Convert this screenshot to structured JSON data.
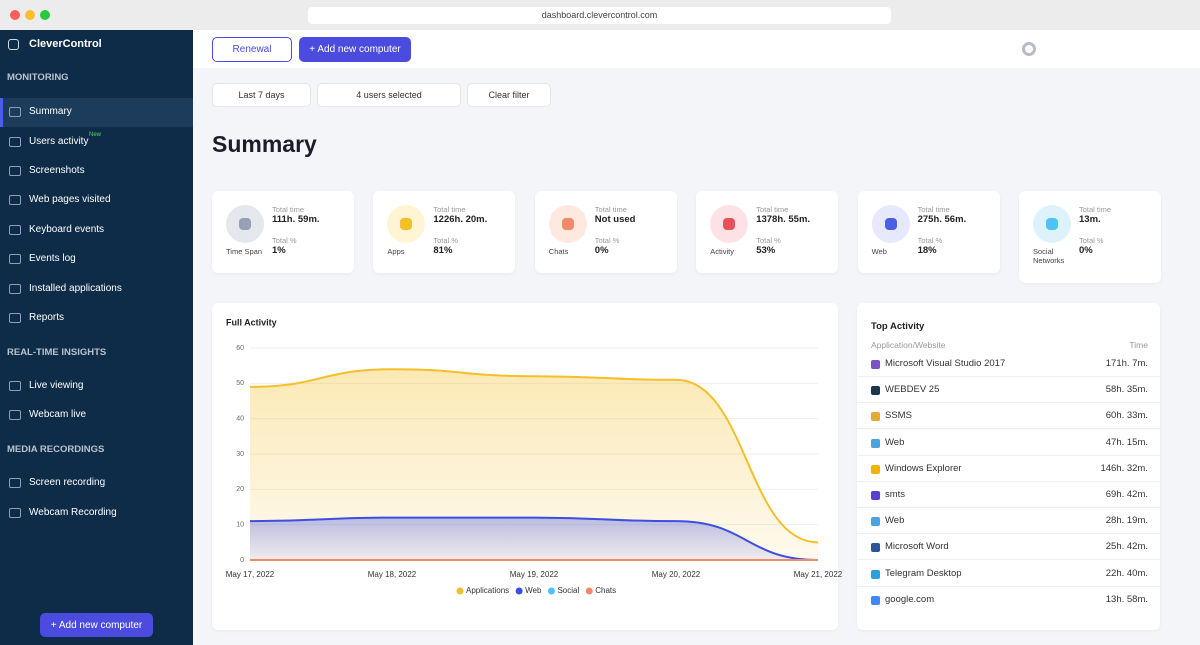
{
  "browser": {
    "url": "dashboard.clevercontrol.com"
  },
  "sidebar": {
    "brand": "CleverControl",
    "sections": [
      {
        "heading": "MONITORING",
        "items": [
          "Summary",
          "Users activity",
          "Screenshots",
          "Web pages visited",
          "Keyboard events",
          "Events log",
          "Installed applications",
          "Reports"
        ]
      },
      {
        "heading": "REAL-TIME INSIGHTS",
        "items": [
          "Live viewing",
          "Webcam live"
        ]
      },
      {
        "heading": "MEDIA RECORDINGS",
        "items": [
          "Screen recording",
          "Webcam Recording"
        ]
      }
    ],
    "badge": "New",
    "button": "+ Add new computer"
  },
  "toolbar": {
    "renewal": "Renewal",
    "add": "+ Add new computer"
  },
  "filters": {
    "period": "Last 7 days",
    "users": "4 users selected",
    "clear": "Clear filter"
  },
  "page_title": "Summary",
  "stats": [
    {
      "label": "Time Span",
      "time_label": "Total time",
      "time": "111h. 59m.",
      "pct_label": "Total %",
      "pct": "1%"
    },
    {
      "label": "Apps",
      "time_label": "Total time",
      "time": "1226h. 20m.",
      "pct_label": "Total %",
      "pct": "81%"
    },
    {
      "label": "Chats",
      "time_label": "Total time",
      "time": "Not used",
      "pct_label": "Total %",
      "pct": "0%"
    },
    {
      "label": "Activity",
      "time_label": "Total time",
      "time": "1378h. 55m.",
      "pct_label": "Total %",
      "pct": "53%"
    },
    {
      "label": "Web",
      "time_label": "Total time",
      "time": "275h. 56m.",
      "pct_label": "Total %",
      "pct": "18%"
    },
    {
      "label": "Social Networks",
      "time_label": "Total time",
      "time": "13m.",
      "pct_label": "Total %",
      "pct": "0%"
    }
  ],
  "chart_data": {
    "type": "area",
    "title": "Full Activity",
    "categories": [
      "May 17, 2022",
      "May 18, 2022",
      "May 19, 2022",
      "May 20, 2022",
      "May 21, 2022"
    ],
    "series": [
      {
        "name": "Applications",
        "color": "#f5bf2a",
        "values": [
          49,
          54,
          52,
          51,
          5
        ]
      },
      {
        "name": "Web",
        "color": "#3d4fe0",
        "values": [
          11,
          12,
          12,
          11,
          0
        ]
      },
      {
        "name": "Social",
        "color": "#4fc3f7",
        "values": [
          0,
          0,
          0,
          0,
          0
        ]
      },
      {
        "name": "Chats",
        "color": "#f08a6a",
        "values": [
          0,
          0,
          0,
          0,
          0
        ]
      }
    ],
    "ylim": [
      0,
      60
    ],
    "yticks": [
      0,
      10,
      20,
      30,
      40,
      50,
      60
    ],
    "grid": true,
    "legend": "bottom"
  },
  "top_activity": {
    "title": "Top Activity",
    "headers": [
      "Application/Website",
      "Time"
    ],
    "rows": [
      [
        "Microsoft Visual Studio 2017",
        "171h. 7m."
      ],
      [
        "WEBDEV 25",
        "58h. 35m."
      ],
      [
        "SSMS",
        "60h. 33m."
      ],
      [
        "Web",
        "47h. 15m."
      ],
      [
        "Windows Explorer",
        "146h. 32m."
      ],
      [
        "smts",
        "69h. 42m."
      ],
      [
        "Web",
        "28h. 19m."
      ],
      [
        "Microsoft Word",
        "25h. 42m."
      ],
      [
        "Telegram Desktop",
        "22h. 40m."
      ],
      [
        "google.com",
        "13h. 58m."
      ]
    ]
  }
}
